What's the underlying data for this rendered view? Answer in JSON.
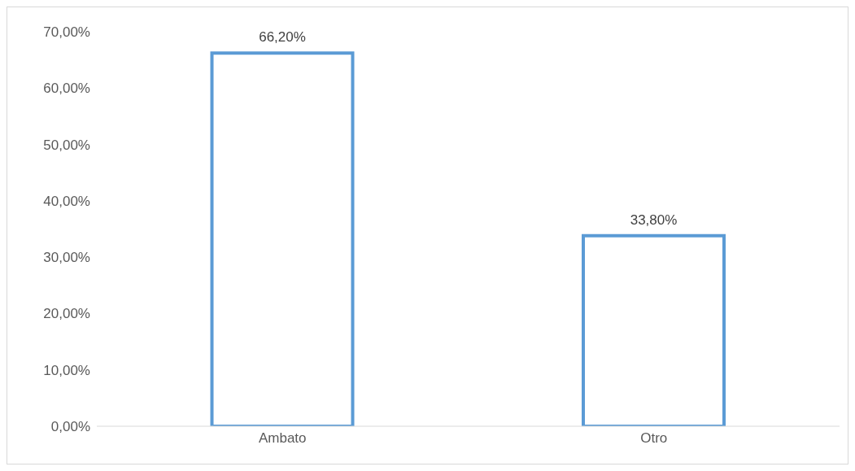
{
  "chart_data": {
    "type": "bar",
    "categories": [
      "Ambato",
      "Otro"
    ],
    "values": [
      66.2,
      33.8
    ],
    "color": "#5b9bd5",
    "value_labels": [
      "66,20%",
      "33,80%"
    ],
    "ylim": [
      0,
      70
    ],
    "yticks": [
      {
        "value": 0,
        "label": "0,00%"
      },
      {
        "value": 10,
        "label": "10,00%"
      },
      {
        "value": 20,
        "label": "20,00%"
      },
      {
        "value": 30,
        "label": "30,00%"
      },
      {
        "value": 40,
        "label": "40,00%"
      },
      {
        "value": 50,
        "label": "50,00%"
      },
      {
        "value": 60,
        "label": "60,00%"
      },
      {
        "value": 70,
        "label": "70,00%"
      }
    ],
    "grid": false,
    "legend": false
  }
}
